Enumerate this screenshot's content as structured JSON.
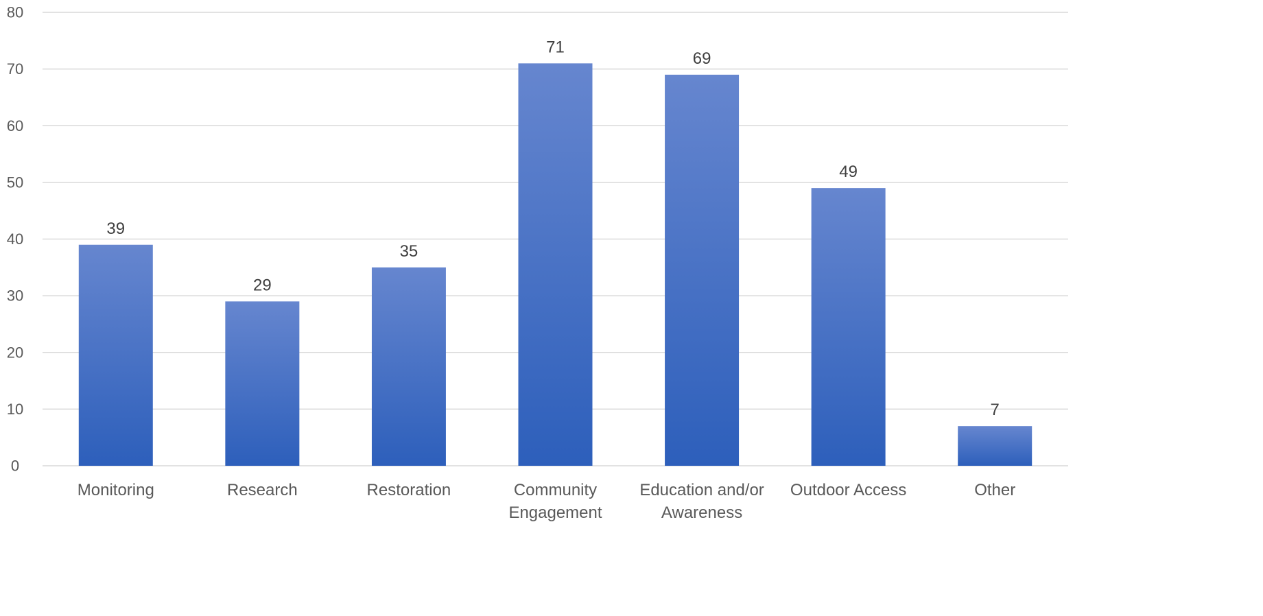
{
  "chart_data": {
    "type": "bar",
    "title": "",
    "xlabel": "",
    "ylabel": "",
    "categories": [
      [
        "Monitoring"
      ],
      [
        "Research"
      ],
      [
        "Restoration"
      ],
      [
        "Community",
        "Engagement"
      ],
      [
        "Education and/or",
        "Awareness"
      ],
      [
        "Outdoor Access"
      ],
      [
        "Other"
      ]
    ],
    "values": [
      39,
      29,
      35,
      71,
      69,
      49,
      7
    ],
    "ylim": [
      0,
      80
    ],
    "yticks": [
      0,
      10,
      20,
      30,
      40,
      50,
      60,
      70,
      80
    ],
    "grid": true,
    "legend": "none",
    "data_labels": true,
    "colors": {
      "bar_top": "#6686CF",
      "bar_bottom": "#2D5FBB",
      "grid": "#D9D9D9",
      "axis_text": "#595959",
      "label_text": "#404040"
    }
  }
}
